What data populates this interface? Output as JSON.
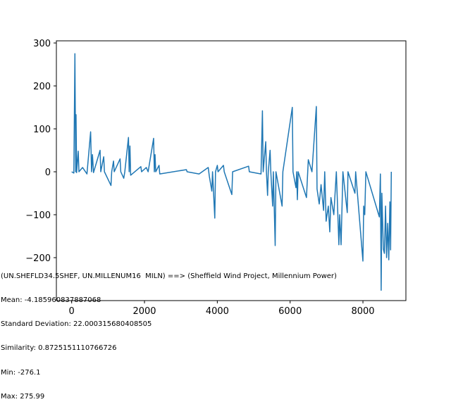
{
  "chart_data": {
    "type": "line",
    "title": "",
    "xlabel": "",
    "ylabel": "",
    "xlim": [
      -420,
      9180
    ],
    "ylim": [
      -300,
      305
    ],
    "x_ticks": [
      0,
      2000,
      4000,
      6000,
      8000
    ],
    "y_ticks": [
      -200,
      -100,
      0,
      100,
      200,
      300
    ],
    "grid": false,
    "series": [
      {
        "color": "#1f77b4",
        "segments": [
          {
            "x": 0,
            "y": 0
          },
          {
            "x": 60,
            "y": -3
          },
          {
            "x": 90,
            "y": 275
          },
          {
            "x": 110,
            "y": 0
          },
          {
            "x": 120,
            "y": 133
          },
          {
            "x": 135,
            "y": -2
          },
          {
            "x": 180,
            "y": 48
          },
          {
            "x": 200,
            "y": 0
          },
          {
            "x": 300,
            "y": 10
          },
          {
            "x": 420,
            "y": -5
          },
          {
            "x": 520,
            "y": 93
          },
          {
            "x": 545,
            "y": 0
          },
          {
            "x": 570,
            "y": 40
          },
          {
            "x": 600,
            "y": -2
          },
          {
            "x": 780,
            "y": 50
          },
          {
            "x": 800,
            "y": 0
          },
          {
            "x": 880,
            "y": 35
          },
          {
            "x": 900,
            "y": 0
          },
          {
            "x": 1080,
            "y": -32
          },
          {
            "x": 1100,
            "y": 0
          },
          {
            "x": 1150,
            "y": 25
          },
          {
            "x": 1170,
            "y": 0
          },
          {
            "x": 1330,
            "y": 30
          },
          {
            "x": 1350,
            "y": 0
          },
          {
            "x": 1430,
            "y": -15
          },
          {
            "x": 1460,
            "y": 0
          },
          {
            "x": 1560,
            "y": 80
          },
          {
            "x": 1580,
            "y": 0
          },
          {
            "x": 1600,
            "y": 60
          },
          {
            "x": 1620,
            "y": -8
          },
          {
            "x": 1900,
            "y": 12
          },
          {
            "x": 1920,
            "y": 0
          },
          {
            "x": 2050,
            "y": 10
          },
          {
            "x": 2100,
            "y": 0
          },
          {
            "x": 2250,
            "y": 78
          },
          {
            "x": 2270,
            "y": 0
          },
          {
            "x": 2290,
            "y": 40
          },
          {
            "x": 2310,
            "y": 0
          },
          {
            "x": 2400,
            "y": 15
          },
          {
            "x": 2420,
            "y": -5
          },
          {
            "x": 3150,
            "y": 5
          },
          {
            "x": 3170,
            "y": 0
          },
          {
            "x": 3500,
            "y": -5
          },
          {
            "x": 3750,
            "y": 10
          },
          {
            "x": 3780,
            "y": -10
          },
          {
            "x": 3850,
            "y": -45
          },
          {
            "x": 3870,
            "y": 0
          },
          {
            "x": 3930,
            "y": -108
          },
          {
            "x": 3950,
            "y": 0
          },
          {
            "x": 4000,
            "y": 15
          },
          {
            "x": 4020,
            "y": 0
          },
          {
            "x": 4170,
            "y": 15
          },
          {
            "x": 4190,
            "y": 0
          },
          {
            "x": 4400,
            "y": -53
          },
          {
            "x": 4420,
            "y": 0
          },
          {
            "x": 4860,
            "y": 13
          },
          {
            "x": 4880,
            "y": 0
          },
          {
            "x": 5200,
            "y": -5
          },
          {
            "x": 5240,
            "y": 142
          },
          {
            "x": 5260,
            "y": 0
          },
          {
            "x": 5330,
            "y": 70
          },
          {
            "x": 5350,
            "y": 0
          },
          {
            "x": 5380,
            "y": -55
          },
          {
            "x": 5400,
            "y": 0
          },
          {
            "x": 5450,
            "y": 50
          },
          {
            "x": 5470,
            "y": 0
          },
          {
            "x": 5520,
            "y": -80
          },
          {
            "x": 5540,
            "y": 0
          },
          {
            "x": 5590,
            "y": -172
          },
          {
            "x": 5610,
            "y": 0
          },
          {
            "x": 5780,
            "y": -80
          },
          {
            "x": 5800,
            "y": 0
          },
          {
            "x": 6060,
            "y": 150
          },
          {
            "x": 6080,
            "y": 0
          },
          {
            "x": 6160,
            "y": -37
          },
          {
            "x": 6180,
            "y": 0
          },
          {
            "x": 6200,
            "y": -65
          },
          {
            "x": 6220,
            "y": 0
          },
          {
            "x": 6450,
            "y": -60
          },
          {
            "x": 6500,
            "y": 28
          },
          {
            "x": 6600,
            "y": 0
          },
          {
            "x": 6720,
            "y": 152
          },
          {
            "x": 6740,
            "y": -40
          },
          {
            "x": 6800,
            "y": -75
          },
          {
            "x": 6850,
            "y": -30
          },
          {
            "x": 6920,
            "y": -90
          },
          {
            "x": 6950,
            "y": 0
          },
          {
            "x": 6990,
            "y": -115
          },
          {
            "x": 7050,
            "y": -80
          },
          {
            "x": 7090,
            "y": -140
          },
          {
            "x": 7120,
            "y": -60
          },
          {
            "x": 7200,
            "y": -100
          },
          {
            "x": 7270,
            "y": 0
          },
          {
            "x": 7340,
            "y": -170
          },
          {
            "x": 7360,
            "y": -100
          },
          {
            "x": 7400,
            "y": -170
          },
          {
            "x": 7450,
            "y": 0
          },
          {
            "x": 7570,
            "y": -95
          },
          {
            "x": 7590,
            "y": 0
          },
          {
            "x": 7780,
            "y": -50
          },
          {
            "x": 7800,
            "y": 0
          },
          {
            "x": 8000,
            "y": -208
          },
          {
            "x": 8020,
            "y": -80
          },
          {
            "x": 8050,
            "y": -100
          },
          {
            "x": 8080,
            "y": 0
          },
          {
            "x": 8450,
            "y": -105
          },
          {
            "x": 8480,
            "y": -5
          },
          {
            "x": 8500,
            "y": -276
          },
          {
            "x": 8520,
            "y": -50
          },
          {
            "x": 8560,
            "y": -180
          },
          {
            "x": 8590,
            "y": -190
          },
          {
            "x": 8620,
            "y": -80
          },
          {
            "x": 8650,
            "y": -200
          },
          {
            "x": 8680,
            "y": -120
          },
          {
            "x": 8710,
            "y": -205
          },
          {
            "x": 8740,
            "y": -70
          },
          {
            "x": 8760,
            "y": -182
          },
          {
            "x": 8780,
            "y": 0
          }
        ]
      }
    ]
  },
  "stats": {
    "line1": "(UN.SHEFLD34.5SHEF, UN.MILLENUM16  MILN) ==> (Sheffield Wind Project, Millennium Power)",
    "line2": "Mean: -4.185960837887068",
    "line3": "Standard Deviation: 22.000315680408505",
    "line4": "Similarity: 0.8725151110766726",
    "line5": "Min: -276.1",
    "line6": "Max: 275.99"
  }
}
